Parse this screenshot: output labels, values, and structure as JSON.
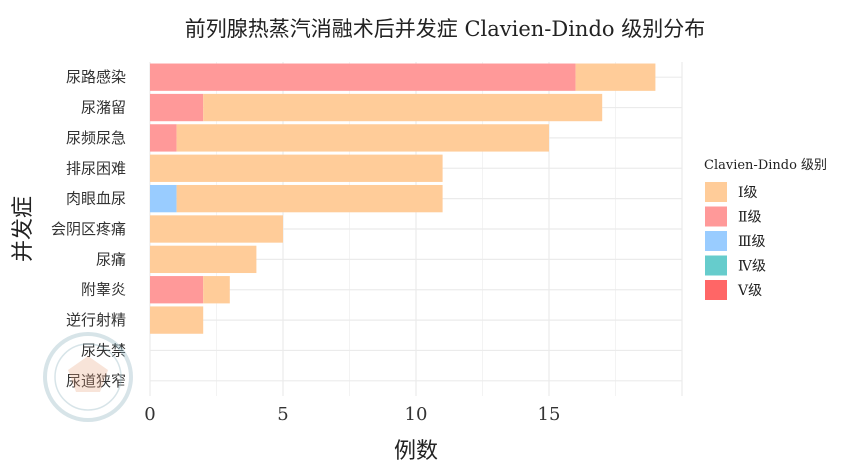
{
  "chart_data": {
    "type": "bar",
    "orientation": "horizontal",
    "stacked": true,
    "title": "前列腺热蒸汽消融术后并发症 Clavien-Dindo 级别分布",
    "xlabel": "例数",
    "ylabel": "并发症",
    "categories": [
      "尿路感染",
      "尿潴留",
      "尿频尿急",
      "排尿困难",
      "肉眼血尿",
      "会阴区疼痛",
      "尿痛",
      "附睾炎",
      "逆行射精",
      "尿失禁",
      "尿道狭窄"
    ],
    "series": [
      {
        "name": "Ⅰ级",
        "color": "#FFCC99",
        "values": [
          3,
          15,
          14,
          11,
          10,
          5,
          4,
          1,
          2,
          0,
          0
        ]
      },
      {
        "name": "Ⅱ级",
        "color": "#FF9999",
        "values": [
          16,
          2,
          1,
          0,
          0,
          0,
          0,
          2,
          0,
          0,
          0
        ]
      },
      {
        "name": "Ⅲ级",
        "color": "#99CCFF",
        "values": [
          0,
          0,
          0,
          0,
          1,
          0,
          0,
          0,
          0,
          0,
          0
        ]
      },
      {
        "name": "Ⅳ级",
        "color": "#66CCCC",
        "values": [
          0,
          0,
          0,
          0,
          0,
          0,
          0,
          0,
          0,
          0,
          0
        ]
      },
      {
        "name": "Ⅴ级",
        "color": "#FF6666",
        "values": [
          0,
          0,
          0,
          0,
          0,
          0,
          0,
          0,
          0,
          0,
          0
        ]
      }
    ],
    "stack_order": [
      "Ⅱ级",
      "Ⅲ级",
      "Ⅰ级"
    ],
    "xlim": [
      0,
      20
    ],
    "xticks": [
      0,
      5,
      10,
      15
    ],
    "grid": true,
    "legend": {
      "title": "Clavien-Dindo 级别",
      "position": "right"
    },
    "watermark": "CHINESE MEDICAL ASSOCIATION"
  }
}
